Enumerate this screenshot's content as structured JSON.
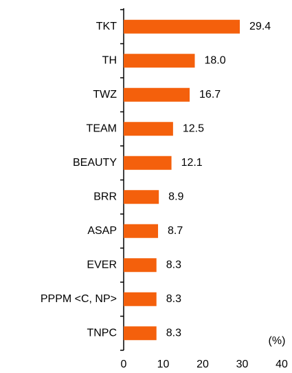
{
  "chart_data": {
    "type": "hbar",
    "categories": [
      "TKT",
      "TH",
      "TWZ",
      "TEAM",
      "BEAUTY",
      "BRR",
      "ASAP",
      "EVER",
      "PPPM <C, NP>",
      "TNPC"
    ],
    "values": [
      29.4,
      18.0,
      16.7,
      12.5,
      12.1,
      8.9,
      8.7,
      8.3,
      8.3,
      8.3
    ],
    "value_labels": [
      "29.4",
      "18.0",
      "16.7",
      "12.5",
      "12.1",
      "8.9",
      "8.7",
      "8.3",
      "8.3",
      "8.3"
    ],
    "color": "#f4600c",
    "xlim": [
      0,
      40
    ],
    "xticks": [
      0,
      10,
      20,
      30,
      40
    ],
    "annotation": "(%)",
    "grid": false
  }
}
